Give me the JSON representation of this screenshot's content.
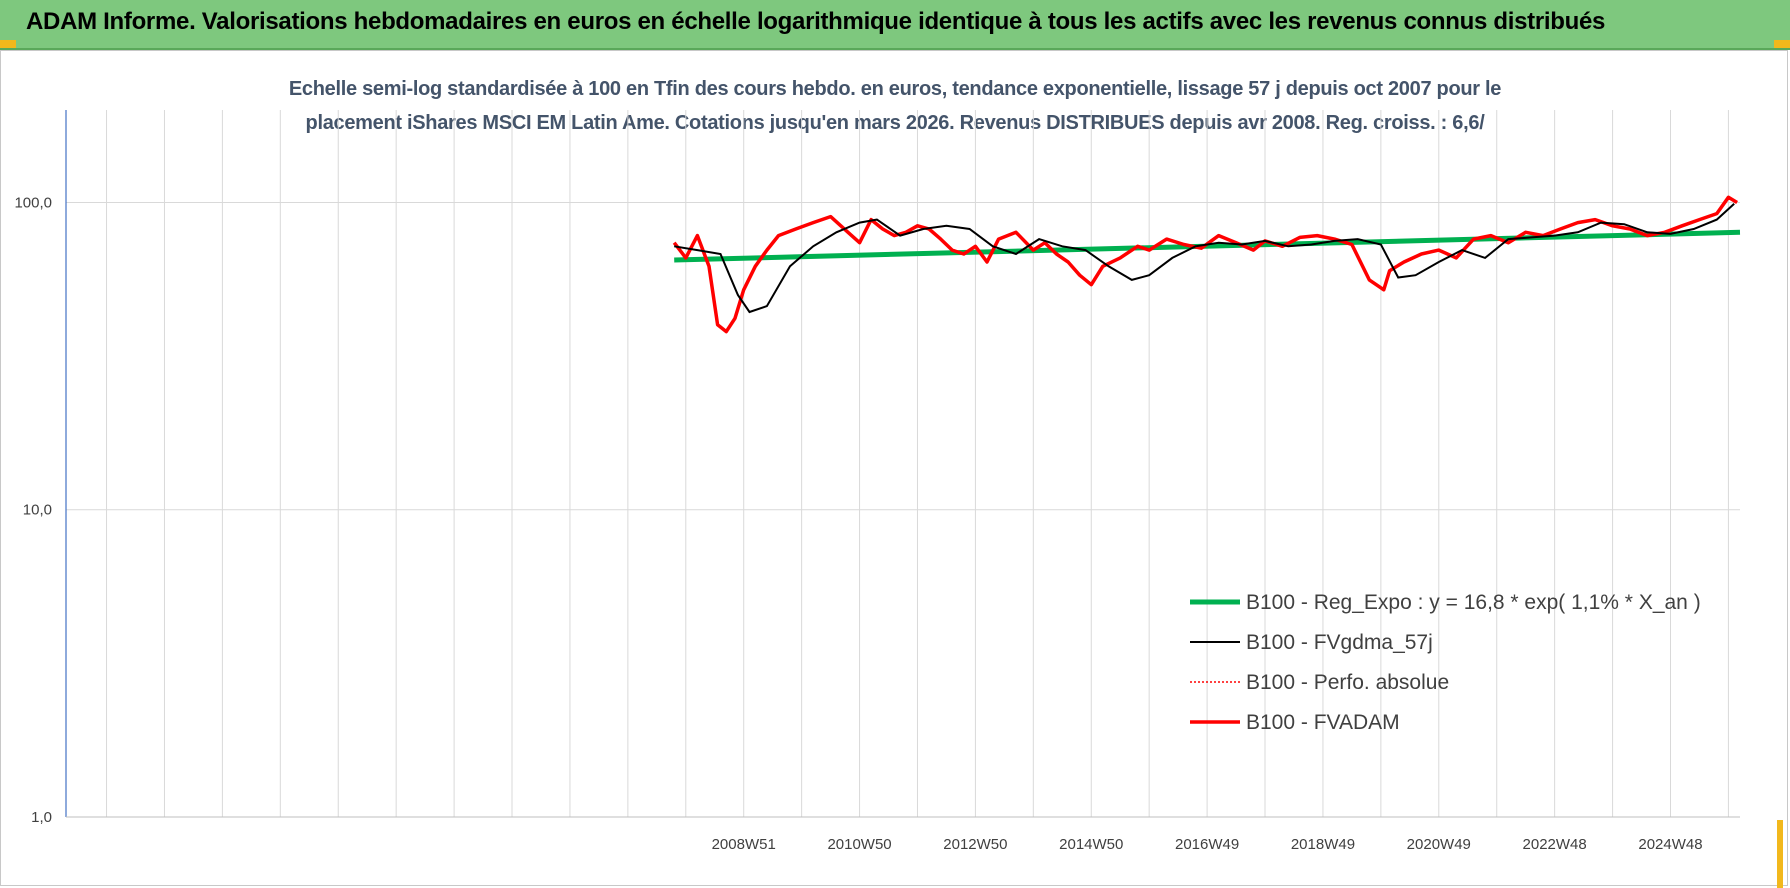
{
  "banner": {
    "title": "ADAM Informe. Valorisations hebdomadaires en euros en échelle logarithmique identique à tous les actifs avec les revenus connus distribués"
  },
  "colors": {
    "banner": "#7ec87e",
    "accent": "#f2b81c",
    "regression": "#00b050",
    "smoothed": "#000000",
    "fvadam": "#ff0000",
    "title_text": "#44546a",
    "grid": "#d9d9d9"
  },
  "chart_data": {
    "type": "line",
    "title": "Echelle semi-log standardisée à 100 en Tfin des cours hebdo. en euros, tendance exponentielle, lissage 57 j depuis oct 2007 pour le placement iShares MSCI EM Latin Ame. Cotations jusqu'en mars 2026. Revenus DISTRIBUES depuis avr 2008. Reg. croiss. : 6,6/",
    "title_lines": [
      "Echelle semi-log standardisée à 100 en Tfin des cours hebdo. en euros, tendance exponentielle, lissage 57 j depuis oct 2007 pour le",
      "placement iShares MSCI EM Latin Ame. Cotations jusqu'en mars 2026. Revenus DISTRIBUES depuis avr 2008. Reg. croiss. : 6,6/"
    ],
    "y_scale": "log",
    "ylim": [
      1,
      200
    ],
    "y_ticks": [
      1,
      10,
      100
    ],
    "y_tick_labels": [
      "1,0",
      "10,0",
      "100,0"
    ],
    "x_start_year": 1997,
    "xlim": [
      1997.3,
      2026.2
    ],
    "x_tick_labels": [
      "2008W51",
      "2010W50",
      "2012W50",
      "2014W50",
      "2016W49",
      "2018W49",
      "2020W49",
      "2022W48",
      "2024W48"
    ],
    "x_tick_years": [
      2009.0,
      2011.0,
      2013.0,
      2015.0,
      2017.0,
      2019.0,
      2021.0,
      2023.0,
      2025.0
    ],
    "grid": true,
    "legend_position": "lower-right",
    "series": [
      {
        "name": "B100 - Reg_Expo : y = 16,8 * exp( 1,1% *  X_an )",
        "style": "green-thick",
        "x": [
          2007.8,
          2026.2
        ],
        "y": [
          65,
          80
        ]
      },
      {
        "name": "B100 - FVgdma_57j",
        "style": "black-thin",
        "x": [
          2007.8,
          2008.2,
          2008.6,
          2008.9,
          2009.1,
          2009.4,
          2009.8,
          2010.2,
          2010.6,
          2011.0,
          2011.3,
          2011.7,
          2012.1,
          2012.5,
          2012.9,
          2013.3,
          2013.7,
          2014.1,
          2014.5,
          2014.9,
          2015.3,
          2015.7,
          2016.0,
          2016.4,
          2016.8,
          2017.2,
          2017.6,
          2018.0,
          2018.4,
          2018.8,
          2019.2,
          2019.6,
          2020.0,
          2020.3,
          2020.6,
          2021.0,
          2021.4,
          2021.8,
          2022.2,
          2022.6,
          2023.0,
          2023.4,
          2023.8,
          2024.2,
          2024.6,
          2025.0,
          2025.4,
          2025.8,
          2026.1
        ],
        "y": [
          72,
          70,
          68,
          50,
          44,
          46,
          62,
          72,
          80,
          86,
          88,
          78,
          82,
          84,
          82,
          72,
          68,
          76,
          72,
          70,
          62,
          56,
          58,
          66,
          72,
          74,
          73,
          75,
          72,
          73,
          75,
          76,
          73,
          57,
          58,
          64,
          70,
          66,
          76,
          77,
          78,
          80,
          86,
          85,
          80,
          79,
          82,
          88,
          99
        ]
      },
      {
        "name": "B100 - Perfo. absolue",
        "style": "red-dotted",
        "x": [],
        "y": []
      },
      {
        "name": "B100 - FVADAM",
        "style": "red-thick",
        "x": [
          2007.8,
          2008.0,
          2008.2,
          2008.4,
          2008.55,
          2008.7,
          2008.85,
          2009.0,
          2009.2,
          2009.4,
          2009.6,
          2009.9,
          2010.2,
          2010.5,
          2010.8,
          2011.0,
          2011.2,
          2011.4,
          2011.6,
          2011.8,
          2012.0,
          2012.2,
          2012.4,
          2012.6,
          2012.8,
          2013.0,
          2013.2,
          2013.4,
          2013.7,
          2014.0,
          2014.2,
          2014.4,
          2014.6,
          2014.8,
          2015.0,
          2015.2,
          2015.5,
          2015.8,
          2016.0,
          2016.3,
          2016.6,
          2016.9,
          2017.2,
          2017.5,
          2017.8,
          2018.0,
          2018.3,
          2018.6,
          2018.9,
          2019.2,
          2019.5,
          2019.8,
          2020.05,
          2020.15,
          2020.4,
          2020.7,
          2021.0,
          2021.3,
          2021.6,
          2021.9,
          2022.2,
          2022.5,
          2022.8,
          2023.1,
          2023.4,
          2023.7,
          2024.0,
          2024.3,
          2024.6,
          2024.9,
          2025.2,
          2025.5,
          2025.8,
          2026.0,
          2026.15
        ],
        "y": [
          74,
          66,
          78,
          62,
          40,
          38,
          42,
          52,
          62,
          70,
          78,
          82,
          86,
          90,
          80,
          74,
          88,
          82,
          78,
          80,
          84,
          82,
          76,
          70,
          68,
          72,
          64,
          76,
          80,
          70,
          74,
          68,
          64,
          58,
          54,
          62,
          66,
          72,
          70,
          76,
          73,
          71,
          78,
          74,
          70,
          75,
          72,
          77,
          78,
          76,
          73,
          56,
          52,
          60,
          64,
          68,
          70,
          66,
          76,
          78,
          74,
          80,
          78,
          82,
          86,
          88,
          84,
          82,
          78,
          80,
          84,
          88,
          92,
          104,
          100
        ]
      }
    ]
  }
}
